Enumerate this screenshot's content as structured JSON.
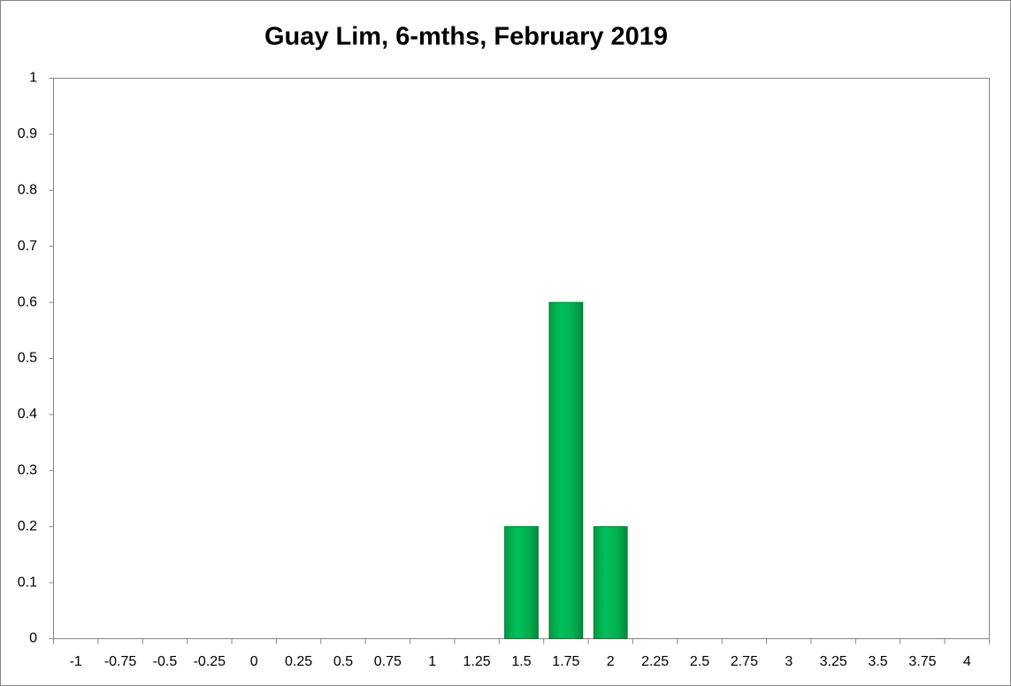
{
  "chart_data": {
    "type": "bar",
    "title": "Guay Lim, 6-mths, February 2019",
    "categories": [
      "-1",
      "-0.75",
      "-0.5",
      "-0.25",
      "0",
      "0.25",
      "0.5",
      "0.75",
      "1",
      "1.25",
      "1.5",
      "1.75",
      "2",
      "2.25",
      "2.5",
      "2.75",
      "3",
      "3.25",
      "3.5",
      "3.75",
      "4"
    ],
    "values": [
      0,
      0,
      0,
      0,
      0,
      0,
      0,
      0,
      0,
      0,
      0.2,
      0.6,
      0.2,
      0,
      0,
      0,
      0,
      0,
      0,
      0,
      0
    ],
    "color": "#00b050",
    "ylim": [
      0,
      1
    ],
    "yticks": [
      0,
      0.1,
      0.2,
      0.3,
      0.4,
      0.5,
      0.6,
      0.7,
      0.8,
      0.9,
      1
    ],
    "grid": false
  }
}
